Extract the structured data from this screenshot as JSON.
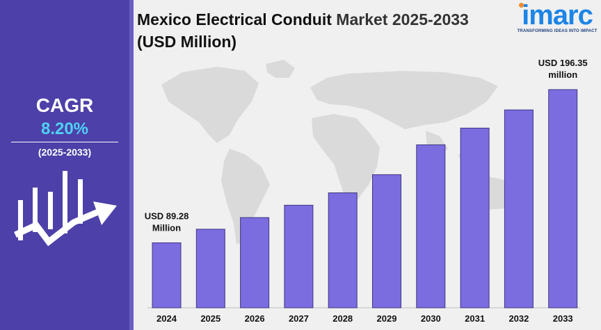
{
  "title": {
    "line1": "Mexico Electrical Conduit",
    "line1_muted": " Market 2025-2033",
    "line2": "(USD Million)"
  },
  "logo": {
    "word": "imarc",
    "tagline": "TRANSFORMING IDEAS INTO IMPACT",
    "color": "#1d85e6",
    "accent": "#f28b2c"
  },
  "sidebar": {
    "cagr_label": "CAGR",
    "cagr_value": "8.20%",
    "cagr_period": "(2025-2033)",
    "icon": "growth-chart-arrow-icon",
    "color": "#4d40a8"
  },
  "chart_data": {
    "type": "bar",
    "title": "Mexico Electrical Conduit Market 2025-2033 (USD Million)",
    "categories": [
      "2024",
      "2025",
      "2026",
      "2027",
      "2028",
      "2029",
      "2030",
      "2031",
      "2032",
      "2033"
    ],
    "values": [
      89.28,
      108,
      124,
      141,
      158,
      183,
      224,
      247,
      272,
      196.35
    ],
    "value_note": "only first and last bars are labeled; intermediate values are estimated from bar heights relative to the labeled bars",
    "annotations": [
      {
        "category": "2024",
        "text_line1": "USD 89.28",
        "text_line2": "Million"
      },
      {
        "category": "2033",
        "text_line1": "USD 196.35",
        "text_line2": "million"
      }
    ],
    "bar_color": "#7b6de0",
    "grid": false,
    "legend": "none"
  }
}
